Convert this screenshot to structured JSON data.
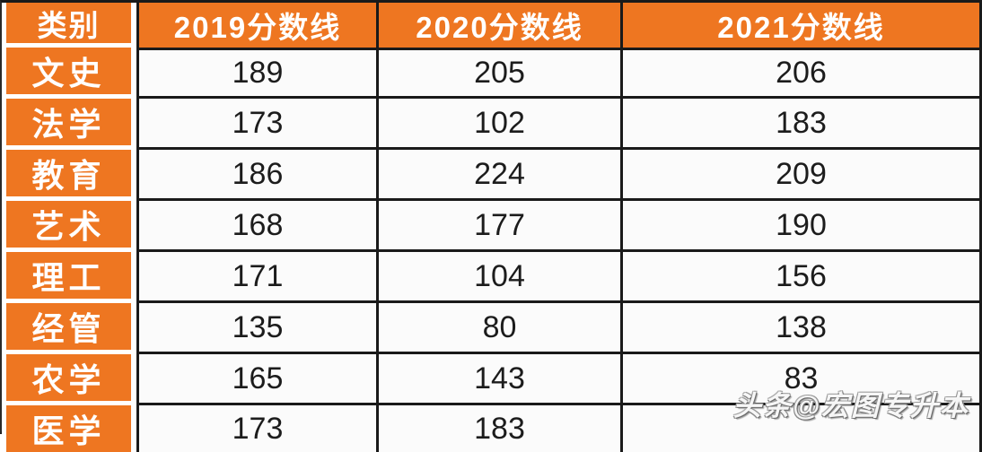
{
  "colors": {
    "orange": "#EE7621",
    "border": "#1A1A1A",
    "cell_bg": "#FBFBFB",
    "num_color": "#1C1C1C"
  },
  "table": {
    "header": [
      "类别",
      "2019分数线",
      "2020分数线",
      "2021分数线"
    ],
    "rows": [
      {
        "category": "文史",
        "values": [
          "189",
          "205",
          "206"
        ]
      },
      {
        "category": "法学",
        "values": [
          "173",
          "102",
          "183"
        ]
      },
      {
        "category": "教育",
        "values": [
          "186",
          "224",
          "209"
        ]
      },
      {
        "category": "艺术",
        "values": [
          "168",
          "177",
          "190"
        ]
      },
      {
        "category": "理工",
        "values": [
          "171",
          "104",
          "156"
        ]
      },
      {
        "category": "经管",
        "values": [
          "135",
          "80",
          "138"
        ]
      },
      {
        "category": "农学",
        "values": [
          "165",
          "143",
          "83"
        ]
      },
      {
        "category": "医学",
        "values": [
          "173",
          "183",
          ""
        ]
      }
    ]
  },
  "watermark": {
    "text": "头条@宏图专升本"
  },
  "chart_data": {
    "type": "table",
    "title": "",
    "columns": [
      "类别",
      "2019分数线",
      "2020分数线",
      "2021分数线"
    ],
    "categories": [
      "文史",
      "法学",
      "教育",
      "艺术",
      "理工",
      "经管",
      "农学",
      "医学"
    ],
    "series": [
      {
        "name": "2019分数线",
        "values": [
          189,
          173,
          186,
          168,
          171,
          135,
          165,
          173
        ]
      },
      {
        "name": "2020分数线",
        "values": [
          205,
          102,
          224,
          177,
          104,
          80,
          143,
          183
        ]
      },
      {
        "name": "2021分数线",
        "values": [
          206,
          183,
          209,
          190,
          156,
          138,
          83,
          null
        ]
      }
    ]
  }
}
